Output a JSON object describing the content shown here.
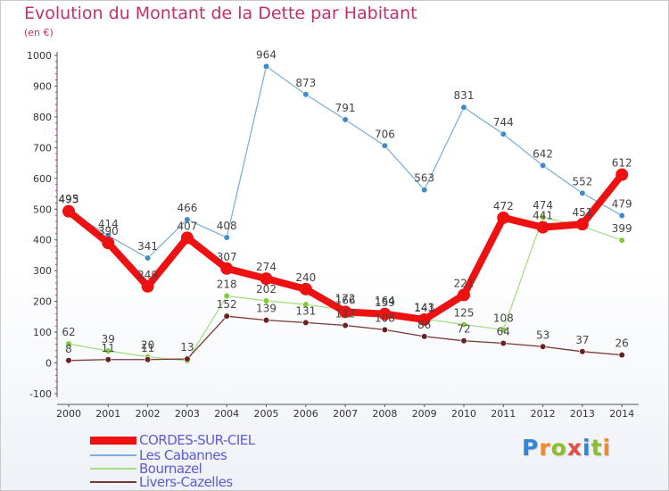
{
  "title": "Evolution du Montant de la Dette par Habitant",
  "subtitle": "(en €)",
  "brand": {
    "text": "Proxiti",
    "letter_colors": [
      "#2f86d6",
      "#f28a2b",
      "#8cbf26",
      "#e34b4b",
      "#2f86d6",
      "#8cbf26",
      "#f28a2b"
    ]
  },
  "chart_data": {
    "type": "line",
    "x": [
      "2000",
      "2001",
      "2002",
      "2003",
      "2004",
      "2005",
      "2006",
      "2007",
      "2008",
      "2009",
      "2010",
      "2011",
      "2012",
      "2013",
      "2014"
    ],
    "ylim": [
      -100,
      1000
    ],
    "yticks": [
      -100,
      0,
      100,
      200,
      300,
      400,
      500,
      600,
      700,
      800,
      900,
      1000
    ],
    "grid": false,
    "legend_position": "bottom-left",
    "series": [
      {
        "name": "CORDES-SUR-CIEL",
        "color": "#ee1111",
        "point_color": "#ee1111",
        "values": [
          493,
          390,
          249,
          407,
          307,
          274,
          240,
          166,
          159,
          141,
          221,
          472,
          441,
          451,
          612
        ],
        "labels": [
          "493",
          "390",
          "249",
          "407",
          "307",
          "274",
          "240",
          "166",
          "159",
          "141",
          "221",
          "472",
          "441",
          "451",
          "612"
        ]
      },
      {
        "name": "Les Cabannes",
        "color": "#7fb1d8",
        "point_color": "#3f8ccc",
        "values": [
          495,
          414,
          341,
          466,
          408,
          964,
          873,
          791,
          706,
          563,
          831,
          744,
          642,
          552,
          479
        ],
        "labels": [
          "495",
          "414",
          "341",
          "466",
          "408",
          "964",
          "873",
          "791",
          "706",
          "563",
          "831",
          "744",
          "642",
          "552",
          "479"
        ]
      },
      {
        "name": "Bournazel",
        "color": "#a8dd88",
        "point_color": "#80cc3a",
        "values": [
          62,
          39,
          20,
          7,
          218,
          202,
          190,
          172,
          164,
          143,
          125,
          108,
          474,
          444,
          399
        ],
        "labels": [
          "62",
          "39",
          "20",
          "",
          "218",
          "202",
          "",
          "172",
          "164",
          "143",
          "125",
          "108",
          "474",
          "",
          "399"
        ]
      },
      {
        "name": "Livers-Cazelles",
        "color": "#7a3535",
        "point_color": "#6b1f1f",
        "values": [
          8,
          11,
          11,
          13,
          152,
          139,
          131,
          122,
          108,
          86,
          72,
          64,
          53,
          37,
          26
        ],
        "labels": [
          "8",
          "11",
          "11",
          "13",
          "152",
          "139",
          "131",
          "122",
          "108",
          "86",
          "72",
          "64",
          "53",
          "37",
          "26"
        ]
      }
    ]
  }
}
